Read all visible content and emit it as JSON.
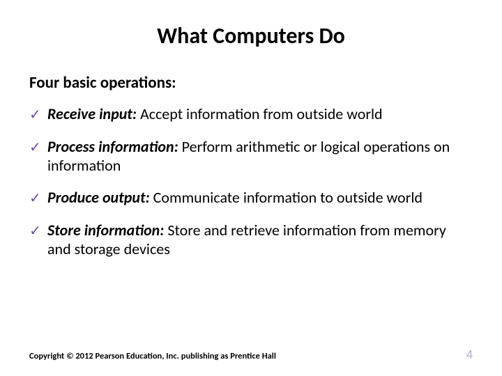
{
  "slide": {
    "title": "What Computers Do",
    "subtitle": "Four basic operations:",
    "bullets": [
      {
        "term": "Receive input:",
        "desc": " Accept information from outside world"
      },
      {
        "term": "Process information:",
        "desc": " Perform arithmetic or logical operations on information"
      },
      {
        "term": "Produce output:",
        "desc": " Communicate information to outside world"
      },
      {
        "term": "Store information:",
        "desc": " Store and retrieve information from memory and storage devices"
      }
    ],
    "copyright": "Copyright © 2012 Pearson Education, Inc. publishing as Prentice Hall",
    "page_number": "4",
    "colors": {
      "check": "#6a4a9c",
      "page_num": "#b9a6d2",
      "text": "#000000",
      "background": "#ffffff"
    },
    "fonts": {
      "title_size": 32,
      "subtitle_size": 23,
      "body_size": 22,
      "copyright_size": 12.5,
      "pagenum_size": 18
    }
  }
}
